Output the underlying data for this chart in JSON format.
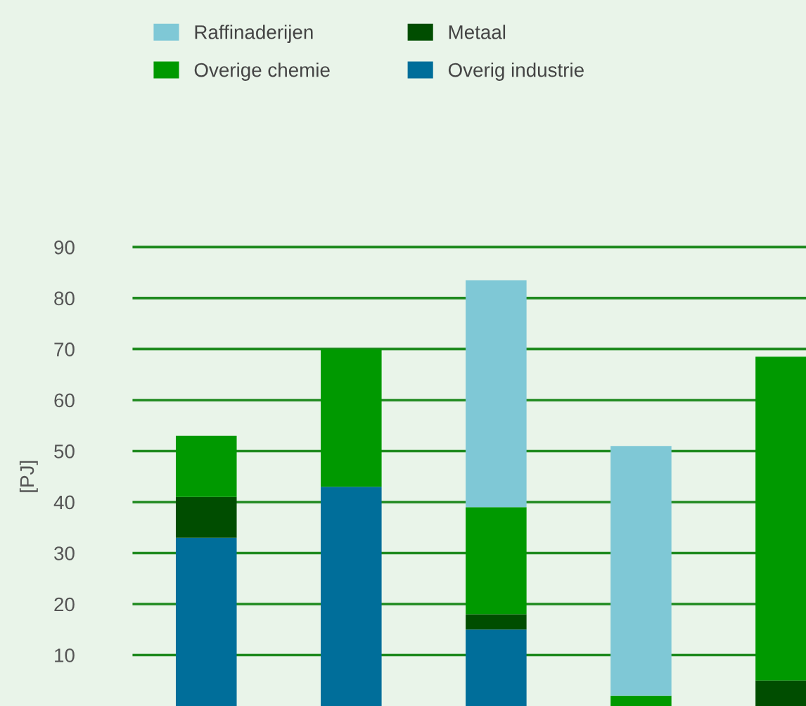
{
  "chart_data": {
    "type": "bar",
    "stacked": true,
    "ylabel": "[PJ]",
    "categories": [
      null,
      null,
      null,
      null,
      null
    ],
    "series": [
      {
        "name": "Overig industrie",
        "color": "#006e9a",
        "values": [
          33,
          43,
          15,
          0,
          0
        ]
      },
      {
        "name": "Metaal",
        "color": "#004d00",
        "values": [
          8,
          0,
          3,
          0,
          5
        ]
      },
      {
        "name": "Overige chemie",
        "color": "#009900",
        "values": [
          12,
          27,
          21,
          2,
          63.5
        ]
      },
      {
        "name": "Raffinaderijen",
        "color": "#7fc8d6",
        "values": [
          0,
          0,
          44.5,
          49,
          0
        ]
      }
    ],
    "ylim": [
      0,
      90
    ],
    "yticks": [
      10,
      20,
      30,
      40,
      50,
      60,
      70,
      80,
      90
    ],
    "grid": "y",
    "legend": "top",
    "tick_labels": "y"
  }
}
